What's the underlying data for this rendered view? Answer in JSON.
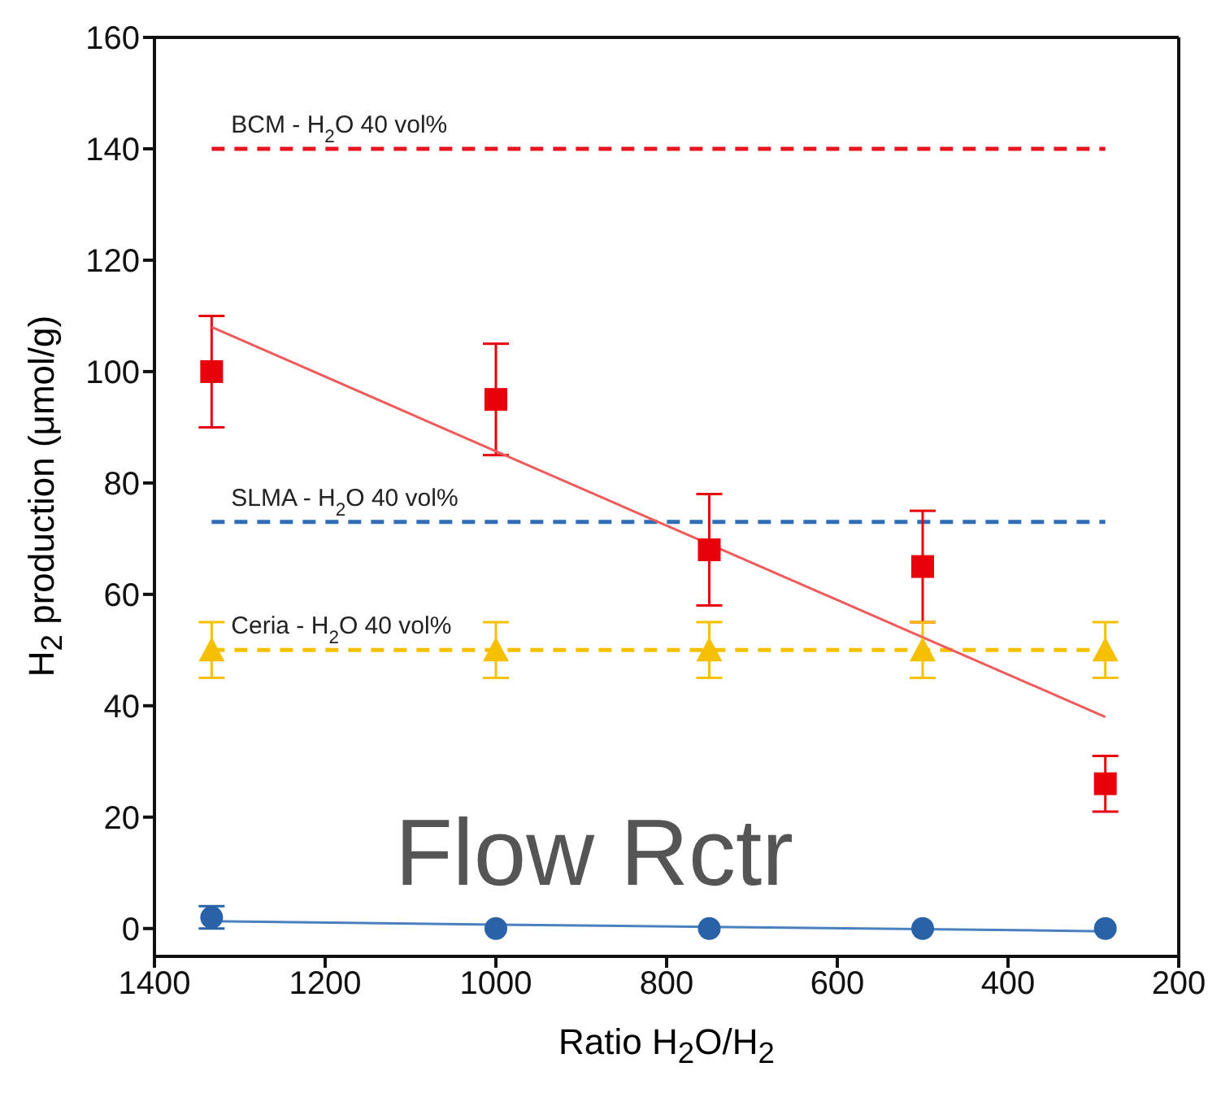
{
  "chart_data": {
    "type": "scatter",
    "xlabel": "Ratio H$_{2}$O/H$_{2}$",
    "ylabel": "H$_{2}$ production (μmol/g)",
    "x": [
      1333,
      1000,
      750,
      500,
      286
    ],
    "xlim": [
      1400,
      200
    ],
    "xticks": [
      1400,
      1200,
      1000,
      800,
      600,
      400,
      200
    ],
    "ylim": [
      -5,
      160
    ],
    "yticks": [
      0,
      20,
      40,
      60,
      80,
      100,
      120,
      140,
      160
    ],
    "series": [
      {
        "type": "scatter",
        "color": "#e8000b",
        "marker": "square",
        "values": [
          100,
          95,
          68,
          65,
          26
        ],
        "errors": [
          10,
          10,
          10,
          10,
          5
        ]
      },
      {
        "type": "scatter",
        "color": "#f5c000",
        "marker": "triangle",
        "values": [
          50,
          50,
          50,
          50,
          50
        ],
        "errors": [
          5,
          5,
          5,
          5,
          5
        ]
      },
      {
        "type": "scatter",
        "color": "#2a62a8",
        "marker": "circle",
        "values": [
          2,
          0,
          0,
          0,
          0
        ],
        "errors": [
          2,
          null,
          null,
          null,
          null
        ]
      },
      {
        "type": "line",
        "color": "#f05a5a",
        "values": [
          108,
          85.7,
          69,
          52.3,
          38
        ]
      },
      {
        "type": "line",
        "color": "#4a7fc0",
        "values": [
          1.3,
          0.7,
          0.3,
          -0.1,
          -0.5
        ]
      }
    ],
    "ref_lines": [
      {
        "axis": "y",
        "value": 140,
        "label": "BCM - H$_{2}$O 40 vol%",
        "color": "#e8141e",
        "line_style": "dashed"
      },
      {
        "axis": "y",
        "value": 73,
        "label": "SLMA - H$_{2}$O 40 vol%",
        "color": "#2f6db5",
        "line_style": "dashed"
      },
      {
        "axis": "y",
        "value": 50,
        "label": "Ceria - H$_{2}$O 40 vol%",
        "color": "#f5c000",
        "line_style": "dashed"
      }
    ],
    "annotations": [
      "Flow Rctr"
    ]
  }
}
